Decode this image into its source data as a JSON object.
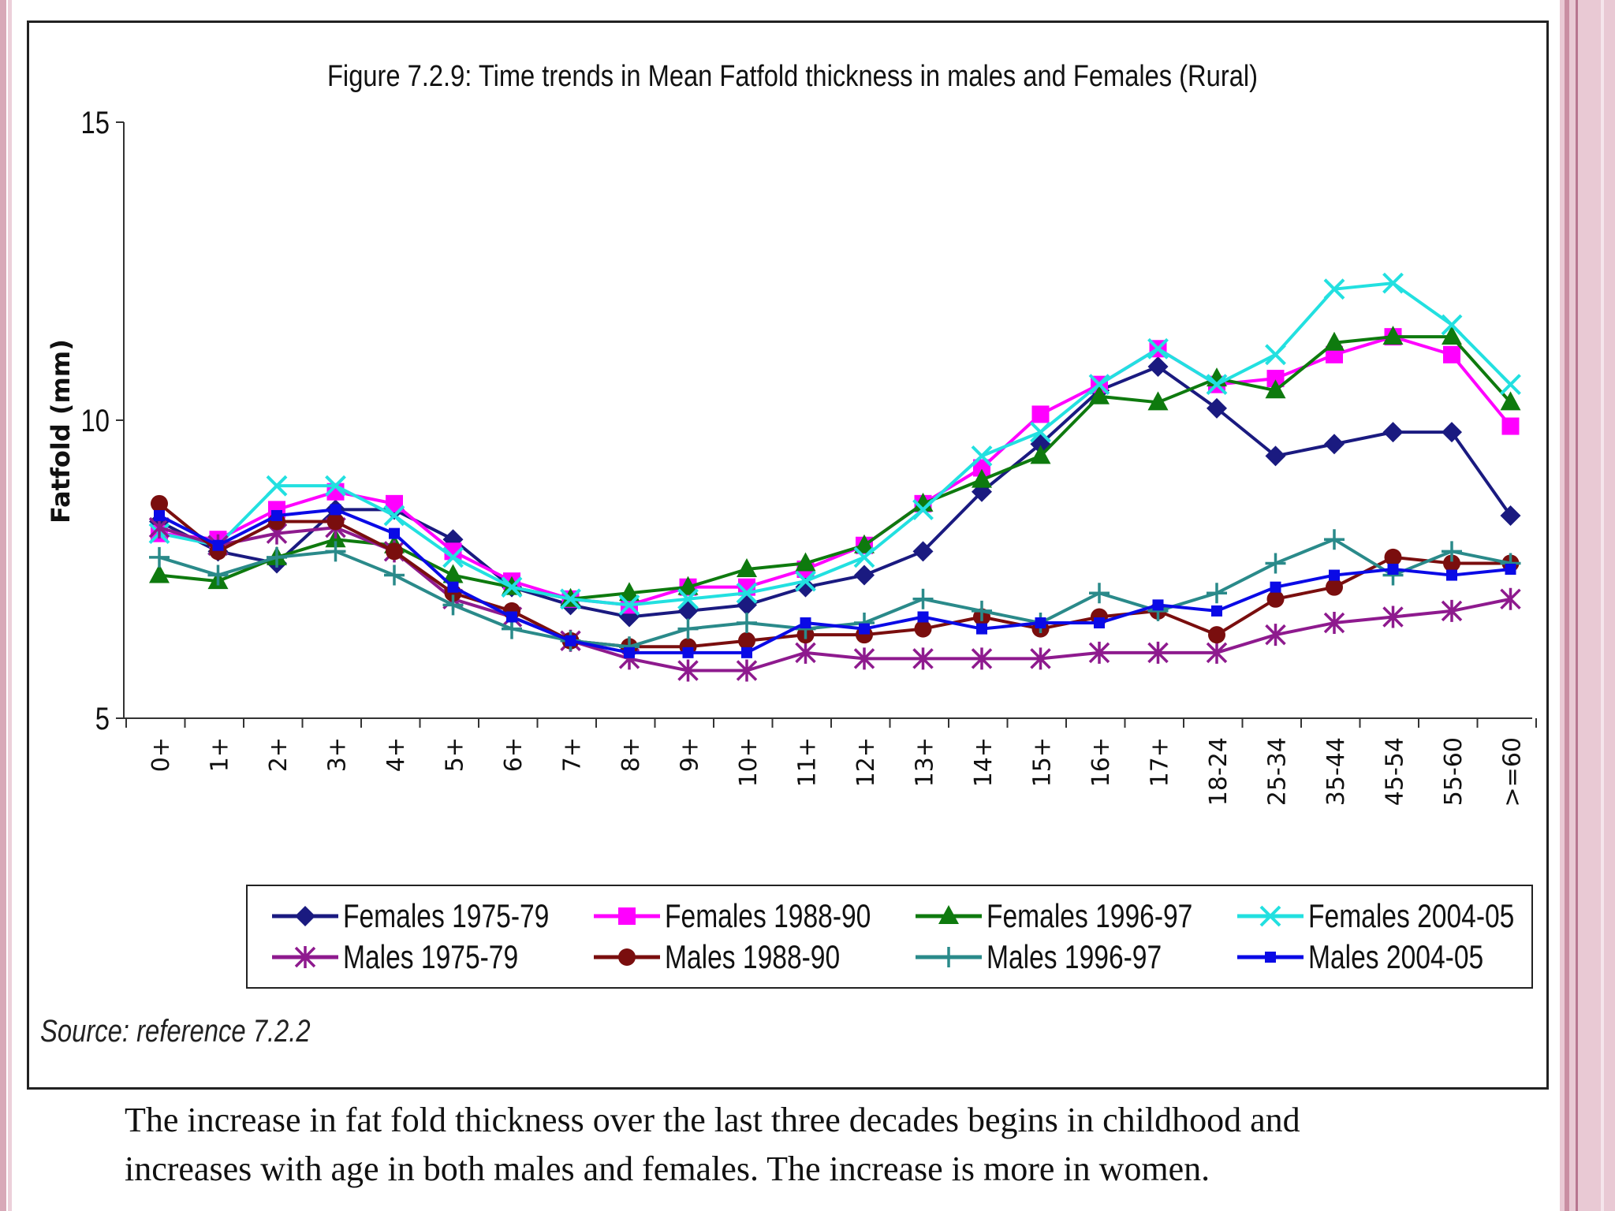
{
  "chart_data": {
    "type": "line",
    "title": "Figure 7.2.9: Time trends  in Mean Fatfold thickness in males and Females (Rural)",
    "ylabel": "Fatfold (mm)",
    "xlabel": "",
    "ylim": [
      5,
      15
    ],
    "yticks": [
      "5",
      "10",
      "15"
    ],
    "categories": [
      "0+",
      "1+",
      "2+",
      "3+",
      "4+",
      "5+",
      "6+",
      "7+",
      "8+",
      "9+",
      "10+",
      "11+",
      "12+",
      "13+",
      "14+",
      "15+",
      "16+",
      "17+",
      "18-24",
      "25-34",
      "35-44",
      "45-54",
      "55-60",
      ">=60"
    ],
    "legend_position": "bottom",
    "grid": false,
    "series": [
      {
        "name": "Females 1975-79",
        "color": "#1a1a80",
        "marker": "diamond",
        "values": [
          8.3,
          7.8,
          7.6,
          8.5,
          8.5,
          8.0,
          7.2,
          6.9,
          6.7,
          6.8,
          6.9,
          7.2,
          7.4,
          7.8,
          8.8,
          9.6,
          10.5,
          10.9,
          10.2,
          9.4,
          9.6,
          9.8,
          9.8,
          8.4
        ]
      },
      {
        "name": "Females 1988-90",
        "color": "#ff00ff",
        "marker": "square",
        "values": [
          8.1,
          8.0,
          8.5,
          8.8,
          8.6,
          7.8,
          7.3,
          7.0,
          6.9,
          7.2,
          7.2,
          7.5,
          7.9,
          8.6,
          9.2,
          10.1,
          10.6,
          11.2,
          10.6,
          10.7,
          11.1,
          11.4,
          11.1,
          9.9
        ]
      },
      {
        "name": "Females 1996-97",
        "color": "#0e7a0e",
        "marker": "triangle",
        "values": [
          7.4,
          7.3,
          7.7,
          8.0,
          7.9,
          7.4,
          7.2,
          7.0,
          7.1,
          7.2,
          7.5,
          7.6,
          7.9,
          8.6,
          9.0,
          9.4,
          10.4,
          10.3,
          10.7,
          10.5,
          11.3,
          11.4,
          11.4,
          10.3
        ]
      },
      {
        "name": "Females 2004-05",
        "color": "#22e0e0",
        "marker": "x",
        "values": [
          8.1,
          7.9,
          8.9,
          8.9,
          8.4,
          7.7,
          7.2,
          7.0,
          6.9,
          7.0,
          7.1,
          7.3,
          7.7,
          8.5,
          9.4,
          9.8,
          10.6,
          11.2,
          10.6,
          11.1,
          12.2,
          12.3,
          11.6,
          10.6
        ]
      },
      {
        "name": "Males 1975-79",
        "color": "#8e1a8e",
        "marker": "asterisk",
        "values": [
          8.2,
          7.9,
          8.1,
          8.2,
          7.8,
          7.0,
          6.7,
          6.3,
          6.0,
          5.8,
          5.8,
          6.1,
          6.0,
          6.0,
          6.0,
          6.0,
          6.1,
          6.1,
          6.1,
          6.4,
          6.6,
          6.7,
          6.8,
          7.0
        ]
      },
      {
        "name": "Males 1988-90",
        "color": "#7a0e0e",
        "marker": "circle",
        "values": [
          8.6,
          7.8,
          8.3,
          8.3,
          7.8,
          7.1,
          6.8,
          6.3,
          6.2,
          6.2,
          6.3,
          6.4,
          6.4,
          6.5,
          6.7,
          6.5,
          6.7,
          6.8,
          6.4,
          7.0,
          7.2,
          7.7,
          7.6,
          7.6
        ]
      },
      {
        "name": "Males 1996-97",
        "color": "#2a8a8a",
        "marker": "plus",
        "values": [
          7.7,
          7.4,
          7.7,
          7.8,
          7.4,
          6.9,
          6.5,
          6.3,
          6.2,
          6.5,
          6.6,
          6.5,
          6.6,
          7.0,
          6.8,
          6.6,
          7.1,
          6.8,
          7.1,
          7.6,
          8.0,
          7.4,
          7.8,
          7.6
        ]
      },
      {
        "name": "Males 2004-05",
        "color": "#0a0ae6",
        "marker": "smallsquare",
        "values": [
          8.4,
          7.9,
          8.4,
          8.5,
          8.1,
          7.2,
          6.7,
          6.3,
          6.1,
          6.1,
          6.1,
          6.6,
          6.5,
          6.7,
          6.5,
          6.6,
          6.6,
          6.9,
          6.8,
          7.2,
          7.4,
          7.5,
          7.4,
          7.5
        ]
      }
    ],
    "source_note": "Source: reference 7.2.2"
  },
  "caption": {
    "line1": "The increase in fat fold thickness over the last three decades begins in childhood and",
    "line2": "increases with age in both males and females. The increase is more in women."
  }
}
